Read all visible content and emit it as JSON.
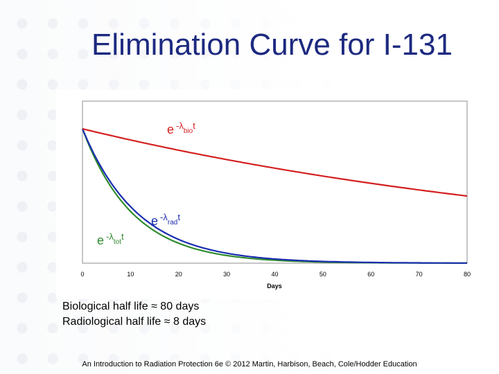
{
  "slide": {
    "title": "Elimination Curve for I-131",
    "notes": [
      "Biological half life ≈ 80 days",
      "Radiological half life ≈ 8 days"
    ],
    "footer": "An Introduction to Radiation Protection 6e © 2012 Martin, Harbison, Beach, Cole/Hodder Education"
  },
  "chart_data": {
    "type": "line",
    "title": "",
    "xlabel": "Days",
    "ylabel": "",
    "xlim": [
      0,
      80
    ],
    "ylim": [
      0,
      1
    ],
    "x_ticks": [
      "0",
      "10",
      "20",
      "30",
      "40",
      "50",
      "60",
      "70",
      "80"
    ],
    "series": [
      {
        "name": "biological",
        "color": "#d42020",
        "half_life_days": 80
      },
      {
        "name": "radiological",
        "color": "#1a2db0",
        "half_life_days": 8
      },
      {
        "name": "total",
        "color": "#2e8b2e",
        "half_life_days": 7.27
      }
    ],
    "annotations": [
      {
        "base": "e",
        "exp": "-λ",
        "sub": "bio",
        "tail": "t",
        "series": "biological"
      },
      {
        "base": "e",
        "exp": "-λ",
        "sub": "rad",
        "tail": "t",
        "series": "radiological"
      },
      {
        "base": "e",
        "exp": "-λ",
        "sub": "tot",
        "tail": "t",
        "series": "total"
      }
    ]
  }
}
